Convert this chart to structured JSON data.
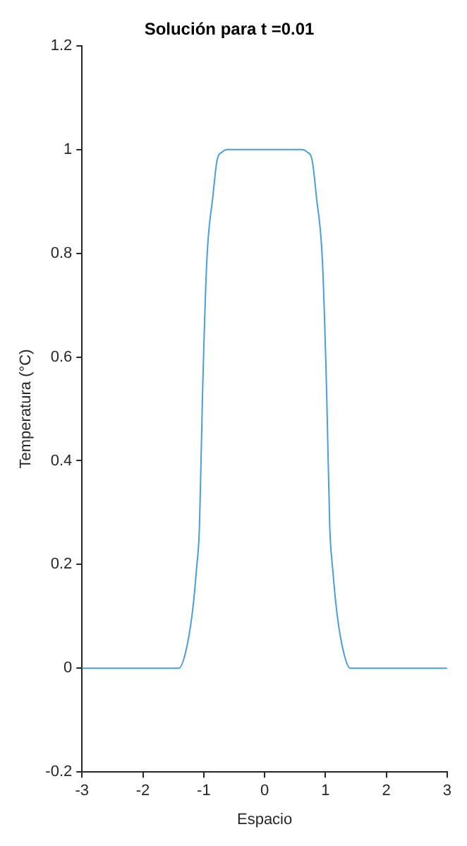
{
  "chart_data": {
    "type": "line",
    "title": "Solución para t =0.01",
    "xlabel": "Espacio",
    "ylabel": "Temperatura (°C)",
    "series": [
      {
        "color": "#4a9de0",
        "x": [
          -3,
          -2,
          -1.5,
          -1.41,
          -1.3,
          -1.19,
          -1.12,
          -1.07,
          -1.02,
          -0.95,
          -0.85,
          -0.78,
          -0.7,
          -0.61,
          -0.3,
          0,
          0.3,
          0.61,
          0.7,
          0.78,
          0.85,
          0.95,
          1.02,
          1.07,
          1.12,
          1.19,
          1.3,
          1.41,
          1.5,
          2,
          3
        ],
        "values": [
          0,
          0,
          0,
          0,
          0.03,
          0.105,
          0.19,
          0.275,
          0.53,
          0.785,
          0.91,
          0.98,
          0.995,
          1,
          1,
          1,
          1,
          1,
          0.995,
          0.98,
          0.91,
          0.785,
          0.53,
          0.275,
          0.19,
          0.105,
          0.03,
          0,
          0,
          0,
          0
        ]
      }
    ],
    "xlim": [
      -3,
      3
    ],
    "xticks": [
      -3,
      -2,
      -1,
      0,
      1,
      2,
      3
    ],
    "ylim": [
      -0.2,
      1.2
    ],
    "yticks": [
      -0.2,
      0,
      0.2,
      0.4,
      0.6,
      0.8,
      1,
      1.2
    ],
    "grid": false,
    "legend": false,
    "marker": "none",
    "line_style": "solid"
  }
}
